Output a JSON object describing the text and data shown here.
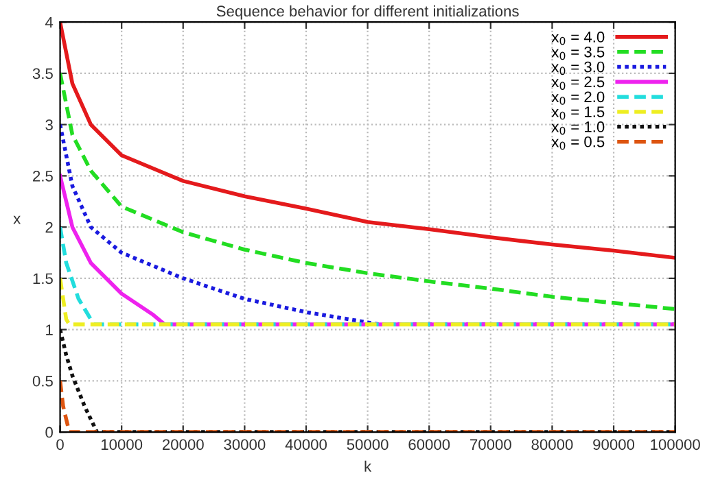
{
  "chart_data": {
    "type": "line",
    "title": "Sequence behavior for different initializations",
    "xlabel": "k",
    "ylabel": "x",
    "xlim": [
      0,
      100000
    ],
    "xticks": [
      0,
      10000,
      20000,
      30000,
      40000,
      50000,
      60000,
      70000,
      80000,
      90000,
      100000
    ],
    "ylim": [
      0,
      4
    ],
    "yticks": [
      0,
      0.5,
      1,
      1.5,
      2,
      2.5,
      3,
      3.5,
      4
    ],
    "grid": true,
    "legend": "top right",
    "marker": "none",
    "series": [
      {
        "name": "x$_{0}$ = 4.0",
        "color": "#e41a1c",
        "line_style": "solid",
        "x": [
          0,
          2000,
          5000,
          10000,
          20000,
          30000,
          40000,
          50000,
          60000,
          70000,
          80000,
          90000,
          100000
        ],
        "values": [
          4.0,
          3.4,
          3.0,
          2.7,
          2.45,
          2.3,
          2.18,
          2.05,
          1.98,
          1.9,
          1.83,
          1.77,
          1.7
        ]
      },
      {
        "name": "x$_{0}$ = 3.5",
        "color": "#22dd22",
        "line_style": "dashed",
        "x": [
          0,
          2000,
          5000,
          10000,
          20000,
          30000,
          40000,
          50000,
          60000,
          70000,
          80000,
          90000,
          100000
        ],
        "values": [
          3.5,
          2.9,
          2.55,
          2.2,
          1.95,
          1.78,
          1.65,
          1.55,
          1.47,
          1.4,
          1.32,
          1.26,
          1.2
        ]
      },
      {
        "name": "x$_{0}$ = 3.0",
        "color": "#1a1adf",
        "line_style": "dotted",
        "x": [
          0,
          2000,
          5000,
          10000,
          20000,
          30000,
          40000,
          50000,
          52000,
          100000
        ],
        "values": [
          3.0,
          2.4,
          2.0,
          1.75,
          1.5,
          1.3,
          1.17,
          1.07,
          1.05,
          1.05
        ]
      },
      {
        "name": "x$_{0}$ = 2.5",
        "color": "#ee22ee",
        "line_style": "solid",
        "x": [
          0,
          2000,
          5000,
          10000,
          15000,
          17000,
          100000
        ],
        "values": [
          2.5,
          2.0,
          1.65,
          1.35,
          1.15,
          1.05,
          1.05
        ]
      },
      {
        "name": "x$_{0}$ = 2.0",
        "color": "#22dddd",
        "line_style": "dashed",
        "x": [
          0,
          1000,
          3000,
          5000,
          5500,
          100000
        ],
        "values": [
          2.0,
          1.65,
          1.3,
          1.1,
          1.05,
          1.05
        ]
      },
      {
        "name": "x$_{0}$ = 1.5",
        "color": "#eeee22",
        "line_style": "dashed",
        "x": [
          0,
          1000,
          1500,
          100000
        ],
        "values": [
          1.5,
          1.1,
          1.05,
          1.05
        ]
      },
      {
        "name": "x$_{0}$ = 1.0",
        "color": "#111111",
        "line_style": "dotted",
        "x": [
          0,
          1000,
          2000,
          4000,
          6000,
          100000
        ],
        "values": [
          1.0,
          0.75,
          0.55,
          0.25,
          0.0,
          0.0
        ]
      },
      {
        "name": "x$_{0}$ = 0.5",
        "color": "#dd5511",
        "line_style": "dashed",
        "x": [
          0,
          500,
          1500,
          100000
        ],
        "values": [
          0.5,
          0.25,
          0.0,
          0.0
        ]
      }
    ]
  }
}
